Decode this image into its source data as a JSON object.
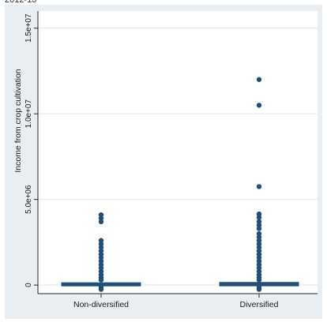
{
  "top_fragment": "2012-13",
  "colors": {
    "outer_bg": "#e9eef2",
    "plot_bg": "#ffffff",
    "grid": "#dfe6ea",
    "box": "#1f4e79",
    "point": "#1f4e79",
    "axis": "#222222"
  },
  "chart_data": {
    "type": "box",
    "title": "",
    "xlabel": "",
    "ylabel": "Income from crop cultivation",
    "categories": [
      "Non-diversified",
      "Diversified"
    ],
    "ylim": [
      -500000,
      16000000
    ],
    "yticks": [
      {
        "value": 0,
        "label": "0"
      },
      {
        "value": 5000000,
        "label": "5.0e+06"
      },
      {
        "value": 10000000,
        "label": "1.0e+07"
      },
      {
        "value": 15000000,
        "label": "1.5e+07"
      }
    ],
    "grid": true,
    "series": [
      {
        "category": "Non-diversified",
        "q1": 0,
        "median": 40000,
        "q3": 90000,
        "whisker_low": 0,
        "whisker_high": 200000,
        "outliers": [
          4100000,
          3900000,
          3700000,
          2600000,
          2400000,
          2200000,
          2000000,
          1800000,
          1600000,
          1400000,
          1200000,
          1000000,
          800000,
          600000,
          450000,
          300000,
          -150000,
          -250000
        ]
      },
      {
        "category": "Diversified",
        "q1": 0,
        "median": 50000,
        "q3": 110000,
        "whisker_low": 0,
        "whisker_high": 250000,
        "outliers": [
          12000000,
          10500000,
          5750000,
          4150000,
          3950000,
          3700000,
          3500000,
          3300000,
          3000000,
          2800000,
          2600000,
          2400000,
          2200000,
          2000000,
          1800000,
          1600000,
          1400000,
          1200000,
          1000000,
          800000,
          600000,
          450000,
          300000,
          -150000,
          -250000
        ]
      }
    ]
  }
}
